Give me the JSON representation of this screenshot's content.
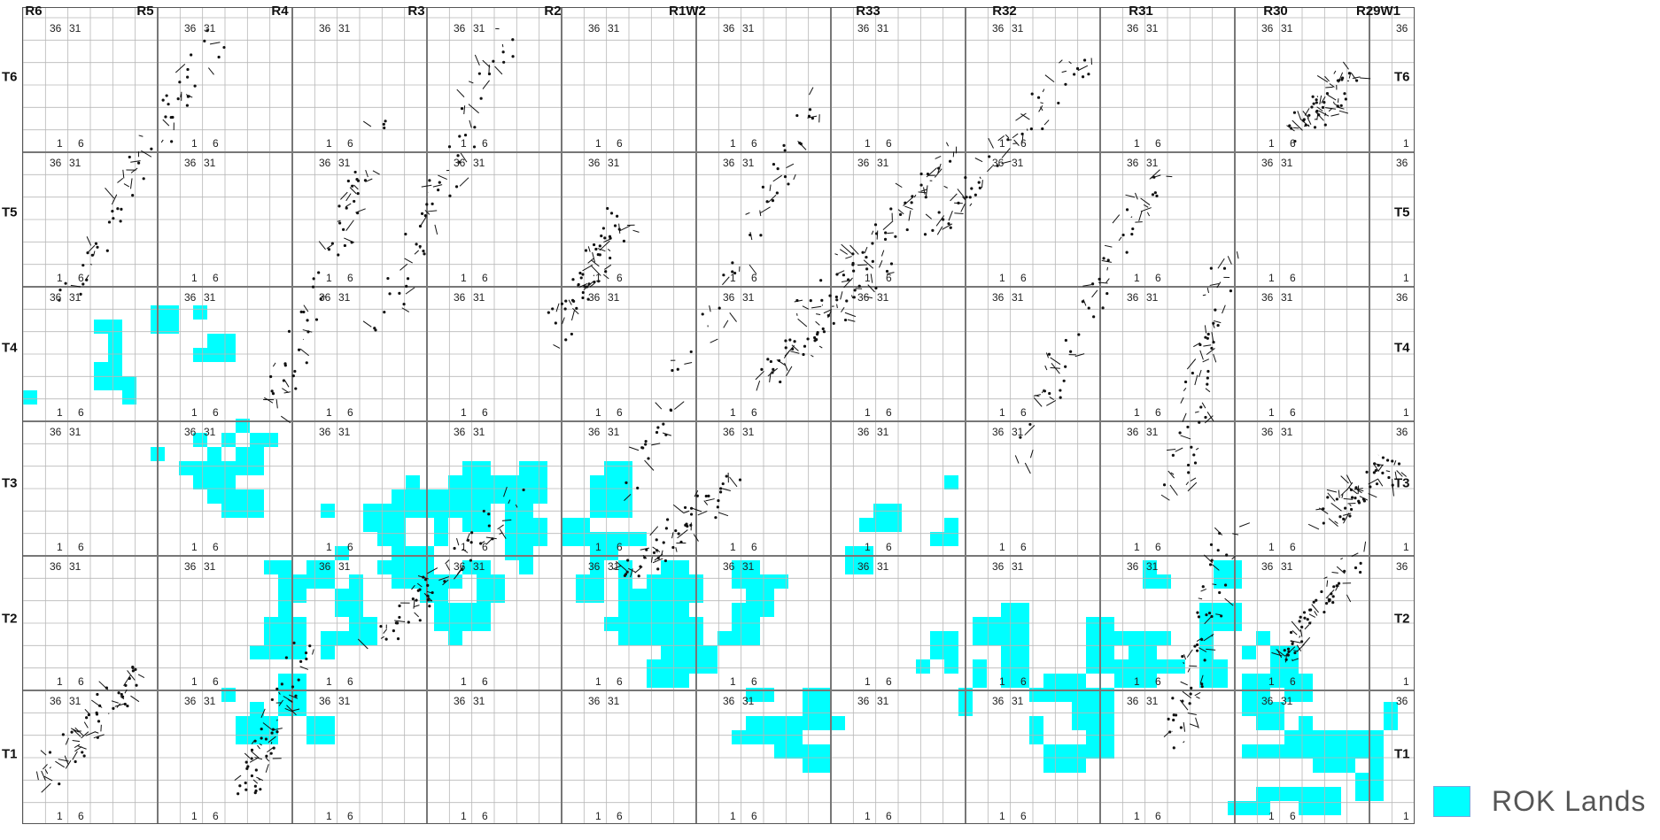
{
  "map": {
    "ranges": [
      "R6",
      "R5",
      "R4",
      "R3",
      "R2",
      "R1W2",
      "R33",
      "R32",
      "R31",
      "R30",
      "R29W1"
    ],
    "townships": [
      "T6",
      "T5",
      "T4",
      "T3",
      "T2",
      "T1"
    ],
    "section_corner_numbers": [
      "1",
      "6",
      "36",
      "31"
    ],
    "colors": {
      "rok_lands": "#00ffff",
      "grid_minor": "#b8b8b8",
      "grid_major": "#777777",
      "features": "#111111"
    }
  },
  "legend": {
    "label": "ROK Lands",
    "color": "#00ffff"
  }
}
